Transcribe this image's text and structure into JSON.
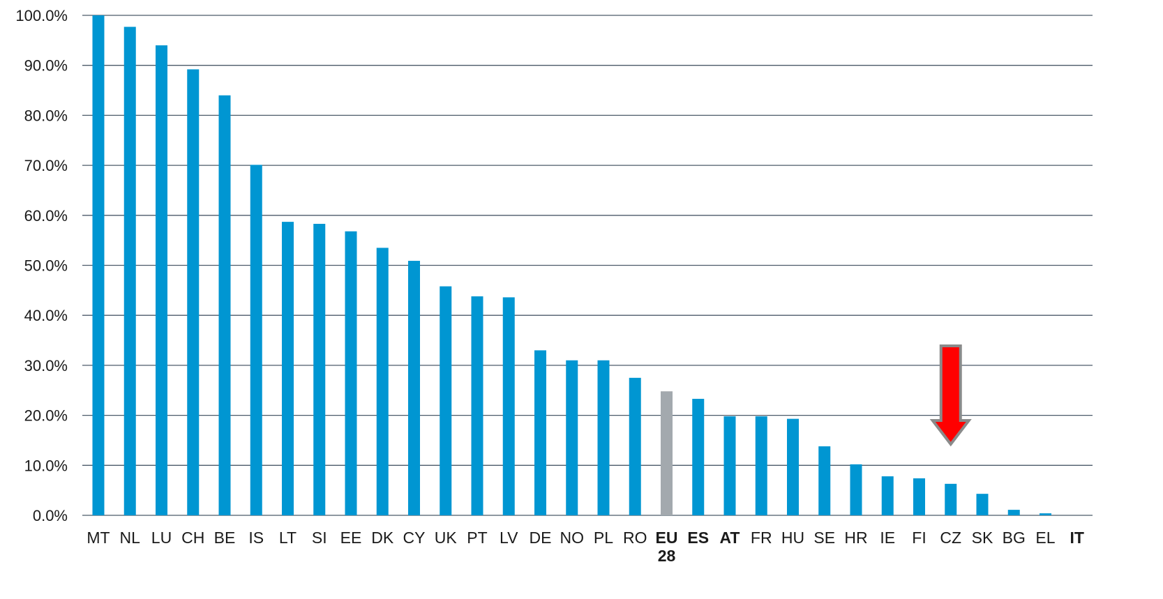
{
  "chart_data": {
    "type": "bar",
    "title": "",
    "xlabel": "",
    "ylabel": "",
    "ylim": [
      0,
      100
    ],
    "yticks": [
      "0.0%",
      "10.0%",
      "20.0%",
      "30.0%",
      "40.0%",
      "50.0%",
      "60.0%",
      "70.0%",
      "80.0%",
      "90.0%",
      "100.0%"
    ],
    "grid": true,
    "legend": "none",
    "categories": [
      "MT",
      "NL",
      "LU",
      "CH",
      "BE",
      "IS",
      "LT",
      "SI",
      "EE",
      "DK",
      "CY",
      "UK",
      "PT",
      "LV",
      "DE",
      "NO",
      "PL",
      "RO",
      "EU 28",
      "ES",
      "AT",
      "FR",
      "HU",
      "SE",
      "HR",
      "IE",
      "FI",
      "CZ",
      "SK",
      "BG",
      "EL",
      "IT"
    ],
    "bold_categories": [
      "EU 28",
      "ES",
      "AT",
      "IT"
    ],
    "values": [
      100.0,
      97.7,
      94.0,
      89.2,
      84.0,
      70.1,
      58.7,
      58.3,
      56.8,
      53.5,
      50.9,
      45.8,
      43.8,
      43.6,
      33.0,
      31.0,
      31.0,
      27.5,
      24.8,
      23.3,
      19.8,
      19.8,
      19.3,
      13.8,
      10.2,
      7.8,
      7.4,
      6.3,
      4.3,
      1.1,
      0.4,
      0.0
    ],
    "highlight_category": "EU 28",
    "arrow_category": "CZ",
    "colors": {
      "bar": "#0096d2",
      "highlight_bar": "#a3a9ae",
      "grid": "#4b5a69",
      "arrow_fill": "#ff0000",
      "arrow_stroke": "#8a8a8a"
    }
  }
}
